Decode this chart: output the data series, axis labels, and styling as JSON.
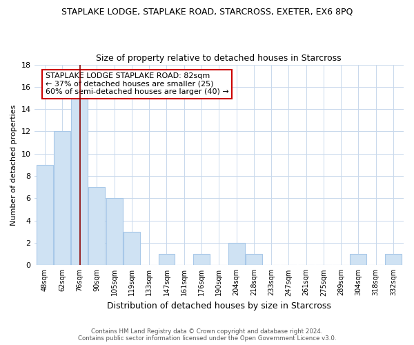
{
  "title": "STAPLAKE LODGE, STAPLAKE ROAD, STARCROSS, EXETER, EX6 8PQ",
  "subtitle": "Size of property relative to detached houses in Starcross",
  "xlabel": "Distribution of detached houses by size in Starcross",
  "ylabel": "Number of detached properties",
  "bar_color": "#cfe2f3",
  "bar_edge_color": "#a8c8e8",
  "vline_color": "#8b0000",
  "categories": [
    "48sqm",
    "62sqm",
    "76sqm",
    "90sqm",
    "105sqm",
    "119sqm",
    "133sqm",
    "147sqm",
    "161sqm",
    "176sqm",
    "190sqm",
    "204sqm",
    "218sqm",
    "233sqm",
    "247sqm",
    "261sqm",
    "275sqm",
    "289sqm",
    "304sqm",
    "318sqm",
    "332sqm"
  ],
  "values": [
    9,
    12,
    15,
    7,
    6,
    3,
    0,
    1,
    0,
    1,
    0,
    2,
    1,
    0,
    0,
    0,
    0,
    0,
    1,
    0,
    1
  ],
  "ylim": [
    0,
    18
  ],
  "yticks": [
    0,
    2,
    4,
    6,
    8,
    10,
    12,
    14,
    16,
    18
  ],
  "annotation_title": "STAPLAKE LODGE STAPLAKE ROAD: 82sqm",
  "annotation_line1": "← 37% of detached houses are smaller (25)",
  "annotation_line2": "60% of semi-detached houses are larger (40) →",
  "annotation_box_color": "#ffffff",
  "annotation_box_edge": "#cc0000",
  "footer1": "Contains HM Land Registry data © Crown copyright and database right 2024.",
  "footer2": "Contains public sector information licensed under the Open Government Licence v3.0.",
  "background_color": "#ffffff",
  "grid_color": "#c8d8ec"
}
